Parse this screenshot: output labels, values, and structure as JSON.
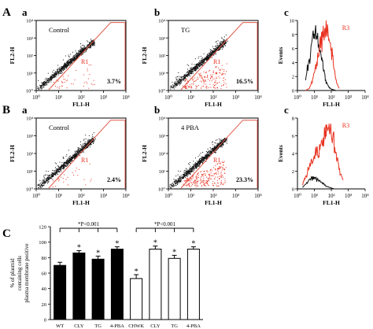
{
  "figure": {
    "rows": [
      {
        "letter": "A",
        "panels": [
          {
            "letter": "a",
            "type": "scatter",
            "title": "Control",
            "gate": "R1",
            "percent": "3.7%",
            "xlabel": "FL1-H",
            "ylabel": "FL2-H"
          },
          {
            "letter": "b",
            "type": "scatter",
            "title": "TG",
            "gate": "R1",
            "percent": "16.5%",
            "xlabel": "FL1-H",
            "ylabel": "FL2-H"
          },
          {
            "letter": "c",
            "type": "histogram",
            "gate": "R3",
            "xlabel": "FL1-H",
            "ylabel": "Events",
            "ymax": 10,
            "yticks": [
              "0",
              "2",
              "4",
              "6",
              "8",
              "10"
            ]
          }
        ]
      },
      {
        "letter": "B",
        "panels": [
          {
            "letter": "a",
            "type": "scatter",
            "title": "Control",
            "gate": "R1",
            "percent": "2.4%",
            "xlabel": "FL1-H",
            "ylabel": "FL2-H"
          },
          {
            "letter": "b",
            "type": "scatter",
            "title": "4 PBA",
            "gate": "R1",
            "percent": "23.3%",
            "xlabel": "FL1-H",
            "ylabel": "FL2-H"
          },
          {
            "letter": "c",
            "type": "histogram",
            "gate": "R3",
            "xlabel": "FL1-H",
            "ylabel": "Events",
            "ymax": 8,
            "yticks": [
              "0",
              "2",
              "4",
              "6",
              "8"
            ]
          }
        ]
      }
    ],
    "log_ticks": [
      "10⁰",
      "10¹",
      "10²",
      "10³",
      "10⁴"
    ],
    "colors": {
      "black": "#111111",
      "red": "#e8311f",
      "gate": "#e05a4a"
    }
  },
  "chart_data": [
    {
      "panel": "A-a",
      "type": "scatter",
      "title": "Control",
      "xlabel": "FL1-H",
      "ylabel": "FL2-H",
      "xscale": "log",
      "yscale": "log",
      "xlim": [
        1,
        10000
      ],
      "ylim": [
        1,
        10000
      ],
      "gate": "R1",
      "gate_percent": 3.7
    },
    {
      "panel": "A-b",
      "type": "scatter",
      "title": "TG",
      "xlabel": "FL1-H",
      "ylabel": "FL2-H",
      "xscale": "log",
      "yscale": "log",
      "xlim": [
        1,
        10000
      ],
      "ylim": [
        1,
        10000
      ],
      "gate": "R1",
      "gate_percent": 16.5
    },
    {
      "panel": "A-c",
      "type": "line",
      "xlabel": "FL1-H",
      "ylabel": "Events",
      "xscale": "log",
      "xlim": [
        1,
        10000
      ],
      "ylim": [
        0,
        10
      ],
      "x": [
        3,
        5,
        8,
        12,
        18,
        25,
        35,
        50,
        70,
        100,
        140,
        200,
        300
      ],
      "series": [
        {
          "color": "black",
          "values": [
            1.5,
            4.5,
            7.5,
            8.2,
            7.0,
            5.0,
            3.0,
            1.2,
            0.5,
            0.2,
            0.1,
            0,
            0
          ]
        },
        {
          "color": "red",
          "gate": "R3",
          "values": [
            0,
            0.3,
            1.5,
            3.5,
            5.5,
            7.0,
            7.8,
            8.4,
            7.6,
            6.0,
            3.5,
            1.2,
            0.3
          ]
        }
      ]
    },
    {
      "panel": "B-a",
      "type": "scatter",
      "title": "Control",
      "xlabel": "FL1-H",
      "ylabel": "FL2-H",
      "xscale": "log",
      "yscale": "log",
      "xlim": [
        1,
        10000
      ],
      "ylim": [
        1,
        10000
      ],
      "gate": "R1",
      "gate_percent": 2.4
    },
    {
      "panel": "B-b",
      "type": "scatter",
      "title": "4 PBA",
      "xlabel": "FL1-H",
      "ylabel": "FL2-H",
      "xscale": "log",
      "yscale": "log",
      "xlim": [
        1,
        10000
      ],
      "ylim": [
        1,
        10000
      ],
      "gate": "R1",
      "gate_percent": 23.3
    },
    {
      "panel": "B-c",
      "type": "line",
      "xlabel": "FL1-H",
      "ylabel": "Events",
      "xscale": "log",
      "xlim": [
        1,
        10000
      ],
      "ylim": [
        0,
        8
      ],
      "x": [
        2,
        3,
        5,
        8,
        12,
        18,
        25,
        35,
        50,
        70,
        100,
        150,
        220,
        330,
        500
      ],
      "series": [
        {
          "color": "black",
          "values": [
            0.2,
            0.5,
            1.0,
            1.3,
            1.2,
            1.0,
            0.8,
            0.6,
            0.3,
            0.2,
            0.1,
            0,
            0,
            0,
            0
          ]
        },
        {
          "color": "red",
          "gate": "R3",
          "values": [
            0.5,
            1.5,
            2.5,
            3.5,
            3.8,
            4.2,
            5.0,
            5.5,
            6.2,
            6.8,
            6.5,
            5.0,
            3.5,
            2.0,
            1.0
          ]
        }
      ]
    },
    {
      "panel": "C",
      "type": "bar",
      "ylabel": "% of plasmid containing cells plasma membrane positive",
      "ylim": [
        0,
        120
      ],
      "yticks": [
        0,
        20,
        40,
        60,
        80,
        100,
        120
      ],
      "categories": [
        "WT",
        "CLY",
        "TG",
        "4-PBA",
        "CHWK",
        "CLY",
        "TG",
        "4-PBA"
      ],
      "values": [
        70,
        86,
        78,
        91,
        53,
        91,
        79,
        91
      ],
      "errors": [
        4,
        3,
        4,
        3,
        5,
        4,
        4,
        3
      ],
      "fills": [
        "black",
        "black",
        "black",
        "black",
        "white",
        "white",
        "white",
        "white"
      ],
      "asterisks": [
        false,
        true,
        true,
        true,
        true,
        true,
        true,
        true
      ],
      "annotations": [
        "*P<0.001",
        "*P<0.001"
      ]
    }
  ]
}
